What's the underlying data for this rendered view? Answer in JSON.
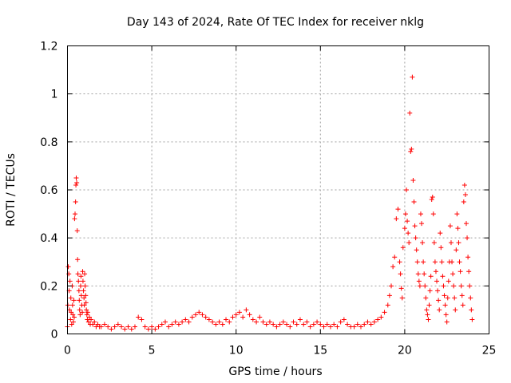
{
  "chart_data": {
    "type": "scatter",
    "title": "Day 143 of 2024, Rate Of TEC Index for receiver nklg",
    "xlabel": "GPS time / hours",
    "ylabel": "ROTI / TECUs",
    "xlim": [
      0,
      25
    ],
    "ylim": [
      0,
      1.2
    ],
    "xticks": [
      0,
      5,
      10,
      15,
      20,
      25
    ],
    "xtick_labels": [
      "0",
      "5",
      "10",
      "15",
      "20",
      "25"
    ],
    "yticks": [
      0,
      0.2,
      0.4,
      0.6,
      0.8,
      1,
      1.2
    ],
    "ytick_labels": [
      "0",
      "0.2",
      "0.4",
      "0.6",
      "0.8",
      "1",
      "1.2"
    ],
    "grid": true,
    "marker": "+",
    "color": "#ff0000",
    "points": [
      [
        0.0,
        0.03
      ],
      [
        0.02,
        0.12
      ],
      [
        0.05,
        0.28
      ],
      [
        0.08,
        0.25
      ],
      [
        0.1,
        0.18
      ],
      [
        0.12,
        0.1
      ],
      [
        0.15,
        0.22
      ],
      [
        0.18,
        0.06
      ],
      [
        0.2,
        0.15
      ],
      [
        0.22,
        0.09
      ],
      [
        0.25,
        0.04
      ],
      [
        0.28,
        0.2
      ],
      [
        0.3,
        0.12
      ],
      [
        0.32,
        0.08
      ],
      [
        0.35,
        0.05
      ],
      [
        0.38,
        0.14
      ],
      [
        0.4,
        0.07
      ],
      [
        0.42,
        0.48
      ],
      [
        0.45,
        0.5
      ],
      [
        0.48,
        0.55
      ],
      [
        0.5,
        0.62
      ],
      [
        0.52,
        0.65
      ],
      [
        0.55,
        0.63
      ],
      [
        0.58,
        0.43
      ],
      [
        0.6,
        0.31
      ],
      [
        0.62,
        0.25
      ],
      [
        0.65,
        0.22
      ],
      [
        0.68,
        0.18
      ],
      [
        0.7,
        0.14
      ],
      [
        0.72,
        0.1
      ],
      [
        0.75,
        0.08
      ],
      [
        0.78,
        0.2
      ],
      [
        0.8,
        0.24
      ],
      [
        0.82,
        0.16
      ],
      [
        0.85,
        0.12
      ],
      [
        0.88,
        0.09
      ],
      [
        0.9,
        0.26
      ],
      [
        0.92,
        0.22
      ],
      [
        0.95,
        0.18
      ],
      [
        0.98,
        0.15
      ],
      [
        1.0,
        0.12
      ],
      [
        1.02,
        0.25
      ],
      [
        1.05,
        0.2
      ],
      [
        1.08,
        0.16
      ],
      [
        1.1,
        0.13
      ],
      [
        1.12,
        0.1
      ],
      [
        1.15,
        0.08
      ],
      [
        1.18,
        0.06
      ],
      [
        1.2,
        0.09
      ],
      [
        1.25,
        0.05
      ],
      [
        1.3,
        0.07
      ],
      [
        1.35,
        0.04
      ],
      [
        1.4,
        0.06
      ],
      [
        1.5,
        0.04
      ],
      [
        1.6,
        0.05
      ],
      [
        1.7,
        0.03
      ],
      [
        1.8,
        0.04
      ],
      [
        1.9,
        0.03
      ],
      [
        2.0,
        0.03
      ],
      [
        2.2,
        0.04
      ],
      [
        2.4,
        0.03
      ],
      [
        2.6,
        0.02
      ],
      [
        2.8,
        0.03
      ],
      [
        3.0,
        0.04
      ],
      [
        3.2,
        0.03
      ],
      [
        3.4,
        0.02
      ],
      [
        3.6,
        0.03
      ],
      [
        3.8,
        0.02
      ],
      [
        4.0,
        0.03
      ],
      [
        4.2,
        0.07
      ],
      [
        4.4,
        0.06
      ],
      [
        4.6,
        0.03
      ],
      [
        4.8,
        0.02
      ],
      [
        5.0,
        0.03
      ],
      [
        5.2,
        0.02
      ],
      [
        5.4,
        0.03
      ],
      [
        5.6,
        0.04
      ],
      [
        5.8,
        0.05
      ],
      [
        6.0,
        0.03
      ],
      [
        6.2,
        0.04
      ],
      [
        6.4,
        0.05
      ],
      [
        6.6,
        0.04
      ],
      [
        6.8,
        0.05
      ],
      [
        7.0,
        0.06
      ],
      [
        7.2,
        0.05
      ],
      [
        7.4,
        0.07
      ],
      [
        7.6,
        0.08
      ],
      [
        7.8,
        0.09
      ],
      [
        8.0,
        0.08
      ],
      [
        8.2,
        0.07
      ],
      [
        8.4,
        0.06
      ],
      [
        8.6,
        0.05
      ],
      [
        8.8,
        0.04
      ],
      [
        9.0,
        0.05
      ],
      [
        9.2,
        0.04
      ],
      [
        9.4,
        0.06
      ],
      [
        9.6,
        0.05
      ],
      [
        9.8,
        0.07
      ],
      [
        10.0,
        0.08
      ],
      [
        10.2,
        0.09
      ],
      [
        10.4,
        0.07
      ],
      [
        10.6,
        0.1
      ],
      [
        10.8,
        0.08
      ],
      [
        11.0,
        0.06
      ],
      [
        11.2,
        0.05
      ],
      [
        11.4,
        0.07
      ],
      [
        11.6,
        0.05
      ],
      [
        11.8,
        0.04
      ],
      [
        12.0,
        0.05
      ],
      [
        12.2,
        0.04
      ],
      [
        12.4,
        0.03
      ],
      [
        12.6,
        0.04
      ],
      [
        12.8,
        0.05
      ],
      [
        13.0,
        0.04
      ],
      [
        13.2,
        0.03
      ],
      [
        13.4,
        0.05
      ],
      [
        13.6,
        0.04
      ],
      [
        13.8,
        0.06
      ],
      [
        14.0,
        0.04
      ],
      [
        14.2,
        0.05
      ],
      [
        14.4,
        0.03
      ],
      [
        14.6,
        0.04
      ],
      [
        14.8,
        0.05
      ],
      [
        15.0,
        0.04
      ],
      [
        15.2,
        0.03
      ],
      [
        15.4,
        0.04
      ],
      [
        15.6,
        0.03
      ],
      [
        15.8,
        0.04
      ],
      [
        16.0,
        0.03
      ],
      [
        16.2,
        0.05
      ],
      [
        16.4,
        0.06
      ],
      [
        16.6,
        0.04
      ],
      [
        16.8,
        0.03
      ],
      [
        17.0,
        0.03
      ],
      [
        17.2,
        0.04
      ],
      [
        17.4,
        0.03
      ],
      [
        17.6,
        0.04
      ],
      [
        17.8,
        0.05
      ],
      [
        18.0,
        0.04
      ],
      [
        18.2,
        0.05
      ],
      [
        18.4,
        0.06
      ],
      [
        18.6,
        0.07
      ],
      [
        18.8,
        0.09
      ],
      [
        19.0,
        0.12
      ],
      [
        19.1,
        0.16
      ],
      [
        19.2,
        0.2
      ],
      [
        19.3,
        0.28
      ],
      [
        19.4,
        0.32
      ],
      [
        19.5,
        0.48
      ],
      [
        19.6,
        0.52
      ],
      [
        19.7,
        0.3
      ],
      [
        19.75,
        0.25
      ],
      [
        19.8,
        0.19
      ],
      [
        19.85,
        0.15
      ],
      [
        19.9,
        0.36
      ],
      [
        20.0,
        0.44
      ],
      [
        20.05,
        0.5
      ],
      [
        20.1,
        0.6
      ],
      [
        20.15,
        0.47
      ],
      [
        20.2,
        0.42
      ],
      [
        20.25,
        0.38
      ],
      [
        20.3,
        0.92
      ],
      [
        20.35,
        0.76
      ],
      [
        20.4,
        0.77
      ],
      [
        20.45,
        1.07
      ],
      [
        20.5,
        0.64
      ],
      [
        20.55,
        0.55
      ],
      [
        20.6,
        0.45
      ],
      [
        20.65,
        0.4
      ],
      [
        20.7,
        0.35
      ],
      [
        20.75,
        0.3
      ],
      [
        20.8,
        0.25
      ],
      [
        20.85,
        0.22
      ],
      [
        20.9,
        0.2
      ],
      [
        20.95,
        0.5
      ],
      [
        21.0,
        0.46
      ],
      [
        21.05,
        0.38
      ],
      [
        21.1,
        0.3
      ],
      [
        21.15,
        0.25
      ],
      [
        21.2,
        0.2
      ],
      [
        21.25,
        0.15
      ],
      [
        21.3,
        0.1
      ],
      [
        21.35,
        0.08
      ],
      [
        21.4,
        0.06
      ],
      [
        21.45,
        0.12
      ],
      [
        21.5,
        0.18
      ],
      [
        21.55,
        0.24
      ],
      [
        21.6,
        0.56
      ],
      [
        21.65,
        0.57
      ],
      [
        21.7,
        0.5
      ],
      [
        21.75,
        0.38
      ],
      [
        21.8,
        0.3
      ],
      [
        21.85,
        0.26
      ],
      [
        21.9,
        0.22
      ],
      [
        21.95,
        0.18
      ],
      [
        22.0,
        0.14
      ],
      [
        22.05,
        0.1
      ],
      [
        22.1,
        0.42
      ],
      [
        22.15,
        0.36
      ],
      [
        22.2,
        0.3
      ],
      [
        22.25,
        0.24
      ],
      [
        22.3,
        0.2
      ],
      [
        22.35,
        0.16
      ],
      [
        22.4,
        0.12
      ],
      [
        22.45,
        0.08
      ],
      [
        22.5,
        0.05
      ],
      [
        22.55,
        0.15
      ],
      [
        22.6,
        0.22
      ],
      [
        22.65,
        0.3
      ],
      [
        22.7,
        0.45
      ],
      [
        22.75,
        0.38
      ],
      [
        22.8,
        0.3
      ],
      [
        22.85,
        0.25
      ],
      [
        22.9,
        0.2
      ],
      [
        22.95,
        0.15
      ],
      [
        23.0,
        0.1
      ],
      [
        23.05,
        0.35
      ],
      [
        23.1,
        0.5
      ],
      [
        23.15,
        0.44
      ],
      [
        23.2,
        0.38
      ],
      [
        23.25,
        0.3
      ],
      [
        23.3,
        0.26
      ],
      [
        23.35,
        0.2
      ],
      [
        23.4,
        0.16
      ],
      [
        23.45,
        0.12
      ],
      [
        23.5,
        0.55
      ],
      [
        23.55,
        0.62
      ],
      [
        23.6,
        0.58
      ],
      [
        23.65,
        0.46
      ],
      [
        23.7,
        0.4
      ],
      [
        23.75,
        0.32
      ],
      [
        23.8,
        0.26
      ],
      [
        23.85,
        0.2
      ],
      [
        23.9,
        0.15
      ],
      [
        23.95,
        0.1
      ],
      [
        24.0,
        0.06
      ]
    ]
  }
}
